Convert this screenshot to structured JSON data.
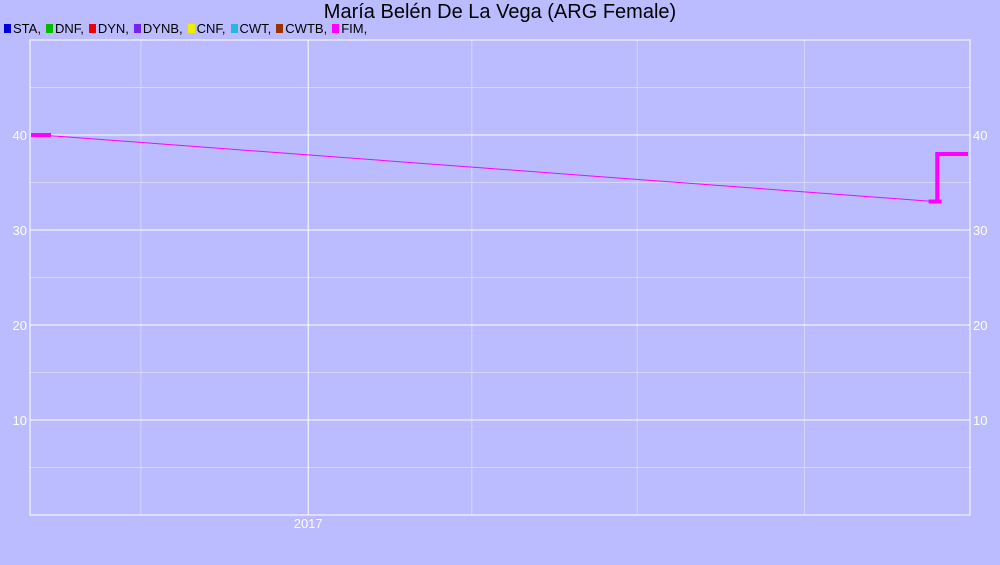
{
  "chart_data": {
    "type": "line",
    "title": "María Belén De La Vega (ARG Female)",
    "legend": [
      {
        "label": "STA,",
        "color": "#0000dd"
      },
      {
        "label": "DNF,",
        "color": "#00bb00"
      },
      {
        "label": "DYN,",
        "color": "#ee0000"
      },
      {
        "label": "DYNB,",
        "color": "#7722ee"
      },
      {
        "label": "CNF,",
        "color": "#eeee00"
      },
      {
        "label": "CWT,",
        "color": "#22bbdd"
      },
      {
        "label": "CWTB,",
        "color": "#993300"
      },
      {
        "label": "FIM,",
        "color": "#ff00ff"
      }
    ],
    "legend_placement": "top-left",
    "x_axis": {
      "ticks": [
        "2017"
      ],
      "range": [
        "2016-08-01",
        "2017-12-31"
      ]
    },
    "y_axis": {
      "ticks": [
        10,
        20,
        30,
        40
      ],
      "range": [
        0,
        50
      ]
    },
    "grid": true,
    "series": [
      {
        "name": "FIM,",
        "color": "#ff00ff",
        "points": [
          {
            "x": "2016-08-07",
            "y": 40
          },
          {
            "x": "2017-12-11",
            "y": 33
          },
          {
            "x": "2017-12-13",
            "y": 38
          }
        ]
      }
    ]
  }
}
